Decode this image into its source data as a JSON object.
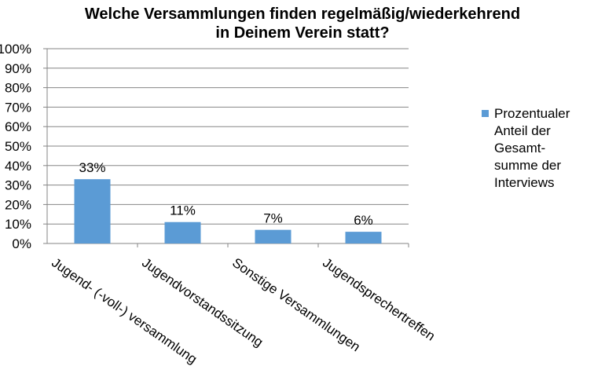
{
  "chart_data": {
    "type": "bar",
    "title_lines": [
      "Welche Versammlungen finden regelmäßig/wiederkehrend",
      "in Deinem Verein statt?"
    ],
    "categories": [
      "Jugend- (-voll-) versammlung",
      "Jugendvorstandssitzung",
      "Sonstige Versammlungen",
      "Jugendsprechertreffen"
    ],
    "series": [
      {
        "name": "Prozentualer Anteil der Gesamt-summe der Interviews",
        "legend_lines": [
          "Prozentualer",
          "Anteil der",
          "Gesamt-",
          "summe der",
          "Interviews"
        ],
        "values": [
          33,
          11,
          7,
          6
        ],
        "data_labels": [
          "33%",
          "11%",
          "7%",
          "6%"
        ],
        "color": "#5b9bd5"
      }
    ],
    "ylim": [
      0,
      100
    ],
    "yticks": [
      "0%",
      "10%",
      "20%",
      "30%",
      "40%",
      "50%",
      "60%",
      "70%",
      "80%",
      "90%",
      "100%"
    ],
    "grid": true,
    "legend_position": "right"
  }
}
